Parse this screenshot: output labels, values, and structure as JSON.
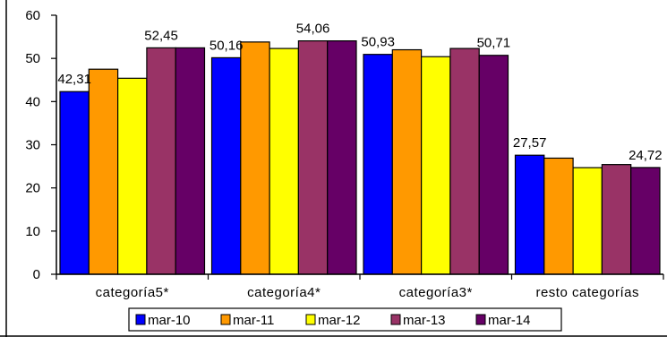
{
  "chart_data": {
    "type": "bar",
    "categories": [
      "categoría5*",
      "categoría4*",
      "categoría3*",
      "resto categorías"
    ],
    "series": [
      {
        "name": "mar-10",
        "color": "#0000FF",
        "values": [
          42.31,
          50.16,
          50.93,
          27.57
        ]
      },
      {
        "name": "mar-11",
        "color": "#FF9900",
        "values": [
          47.5,
          53.8,
          52.0,
          26.9
        ]
      },
      {
        "name": "mar-12",
        "color": "#FFFF00",
        "values": [
          45.4,
          52.3,
          50.4,
          24.7
        ]
      },
      {
        "name": "mar-13",
        "color": "#993366",
        "values": [
          52.45,
          54.06,
          52.3,
          25.4
        ]
      },
      {
        "name": "mar-14",
        "color": "#660066",
        "values": [
          52.45,
          54.06,
          50.71,
          24.72
        ]
      }
    ],
    "data_labels": [
      {
        "category": 0,
        "series": 0,
        "text": "42,31"
      },
      {
        "category": 0,
        "series": 3,
        "text": "52,45"
      },
      {
        "category": 1,
        "series": 0,
        "text": "50,16"
      },
      {
        "category": 1,
        "series": 3,
        "text": "54,06"
      },
      {
        "category": 2,
        "series": 0,
        "text": "50,93"
      },
      {
        "category": 2,
        "series": 4,
        "text": "50,71"
      },
      {
        "category": 3,
        "series": 0,
        "text": "27,57"
      },
      {
        "category": 3,
        "series": 4,
        "text": "24,72"
      }
    ],
    "ylim": [
      0,
      60
    ],
    "yticks": [
      0,
      10,
      20,
      30,
      40,
      50,
      60
    ],
    "grid": false,
    "legend": "bottom",
    "title": "",
    "xlabel": "",
    "ylabel": ""
  }
}
